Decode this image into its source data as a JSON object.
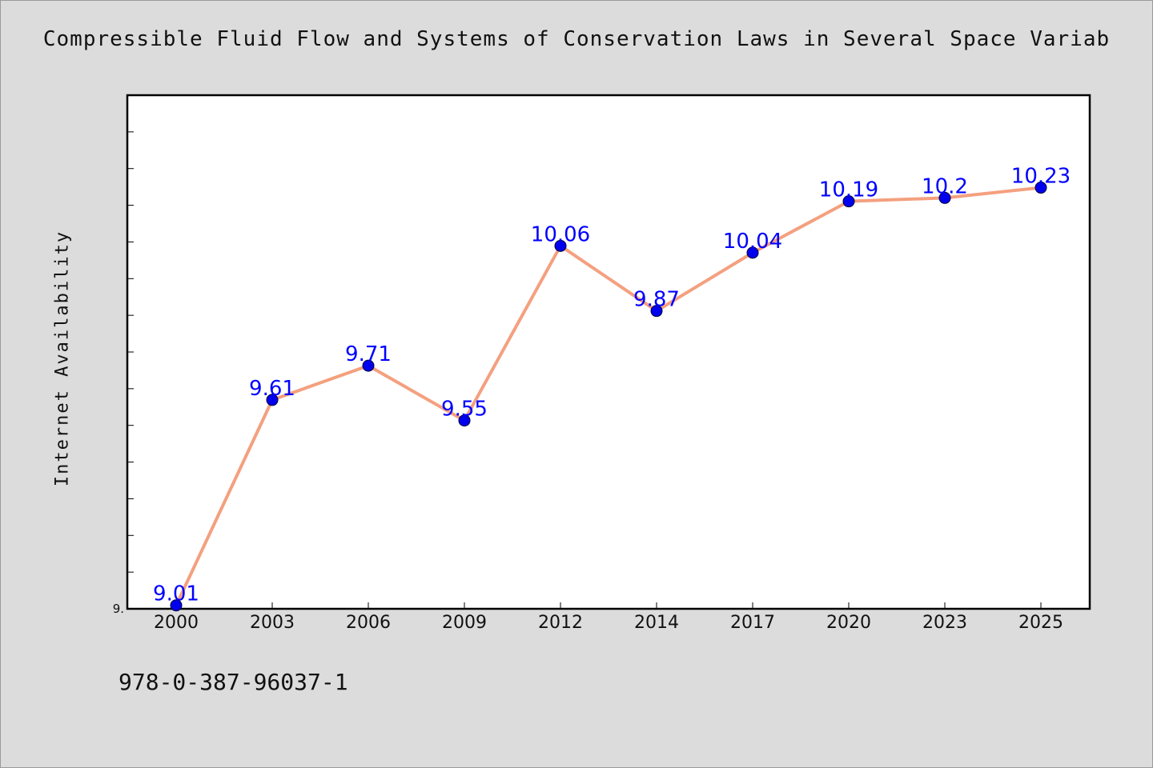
{
  "chart_data": {
    "type": "line",
    "title": "Compressible Fluid Flow and Systems of Conservation Laws in Several Space Variab",
    "xlabel": "",
    "ylabel": "Internet Availability",
    "categories": [
      "2000",
      "2003",
      "2006",
      "2009",
      "2012",
      "2014",
      "2017",
      "2020",
      "2023",
      "2025"
    ],
    "series": [
      {
        "values": [
          9.01,
          9.61,
          9.71,
          9.55,
          10.06,
          9.87,
          10.04,
          10.19,
          10.2,
          10.23
        ],
        "data_labels": [
          "9.01",
          "9.61",
          "9.71",
          "9.55",
          "10.06",
          "9.87",
          "10.04",
          "10.19",
          "10.2",
          "10.23"
        ]
      }
    ],
    "ylim": [
      9.0,
      10.5
    ],
    "y_tick_labels": [
      "9."
    ],
    "grid": false,
    "line_color": "#f4a07f",
    "marker_color": "#0000ee",
    "label_color": "#0000ff",
    "plot_background": "#ffffff",
    "page_background": "#dcdcdc"
  },
  "footer": {
    "code": "978-0-387-96037-1"
  }
}
